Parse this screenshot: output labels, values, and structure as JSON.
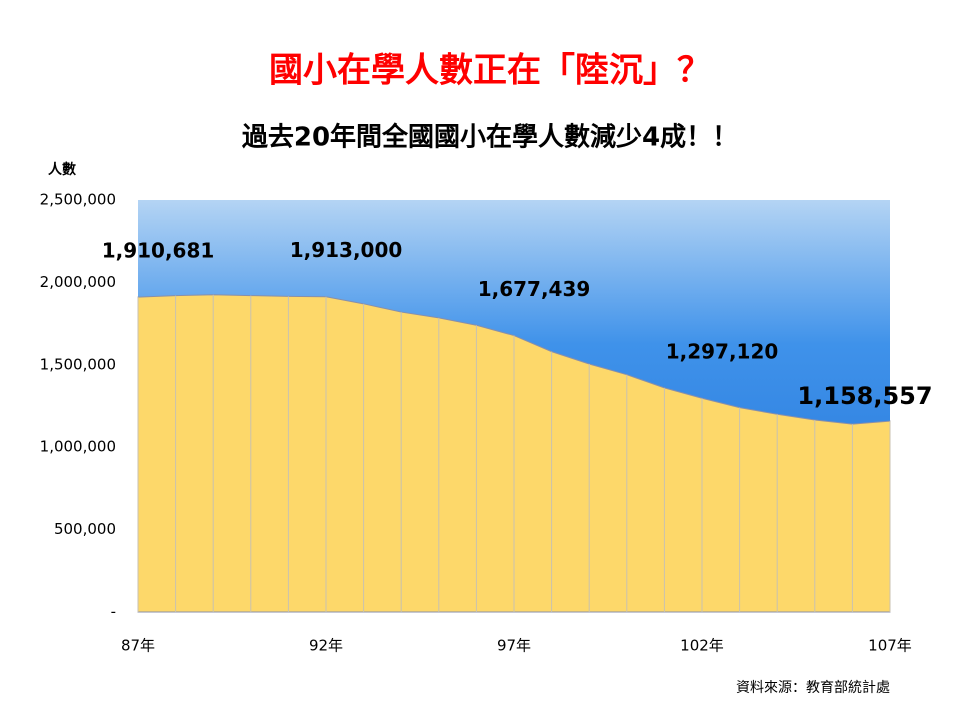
{
  "chart_data": {
    "type": "area",
    "title": "國小在學人數正在「陸沉」？",
    "subtitle": "過去20年間全國國小在學人數減少4成！！",
    "y_axis_label": "人數",
    "source": "資料來源：教育部統計處",
    "categories": [
      "87年",
      null,
      null,
      null,
      null,
      "92年",
      null,
      null,
      null,
      null,
      "97年",
      null,
      null,
      null,
      null,
      "102年",
      null,
      null,
      null,
      null,
      "107年"
    ],
    "values": [
      1910681,
      1920000,
      1925000,
      1920000,
      1915000,
      1913000,
      1870000,
      1820000,
      1785000,
      1740000,
      1677439,
      1580000,
      1505000,
      1440000,
      1360000,
      1297120,
      1240000,
      1200000,
      1165000,
      1140000,
      1158557
    ],
    "value_labels": [
      "1,910,681",
      null,
      null,
      null,
      null,
      "1,913,000",
      null,
      null,
      null,
      null,
      "1,677,439",
      null,
      null,
      null,
      null,
      "1,297,120",
      null,
      null,
      null,
      null,
      "1,158,557"
    ],
    "color": "#fdd86a",
    "ylim": [
      0,
      2500000
    ],
    "yticks": [
      {
        "value": 0,
        "label": "-"
      },
      {
        "value": 500000,
        "label": "500,000"
      },
      {
        "value": 1000000,
        "label": "1,000,000"
      },
      {
        "value": 1500000,
        "label": "1,500,000"
      },
      {
        "value": 2000000,
        "label": "2,000,000"
      },
      {
        "value": 2500000,
        "label": "2,500,000"
      }
    ]
  }
}
